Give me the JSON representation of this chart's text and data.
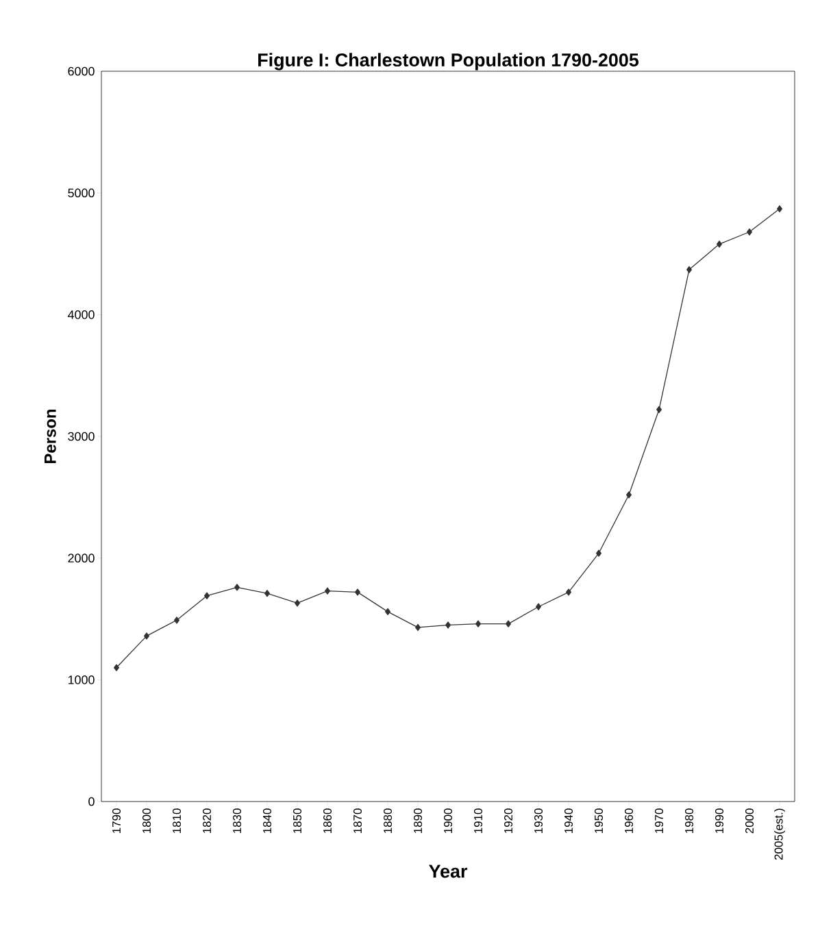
{
  "chart_data": {
    "type": "line",
    "title": "Figure I: Charlestown Population 1790-2005",
    "xlabel": "Year",
    "ylabel": "Person",
    "categories": [
      "1790",
      "1800",
      "1810",
      "1820",
      "1830",
      "1840",
      "1850",
      "1860",
      "1870",
      "1880",
      "1890",
      "1900",
      "1910",
      "1920",
      "1930",
      "1940",
      "1950",
      "1960",
      "1970",
      "1980",
      "1990",
      "2000",
      "2005(est.)"
    ],
    "series": [
      {
        "color": "#333333",
        "values": [
          1100,
          1360,
          1490,
          1690,
          1760,
          1710,
          1630,
          1730,
          1720,
          1560,
          1430,
          1450,
          1460,
          1460,
          1600,
          1720,
          2040,
          2520,
          3220,
          4370,
          4580,
          4680,
          4870
        ]
      }
    ],
    "ylim": [
      0,
      6000
    ],
    "yticks": [
      0,
      1000,
      2000,
      3000,
      4000,
      5000,
      6000
    ],
    "marker": "diamond",
    "line_style": "solid"
  }
}
